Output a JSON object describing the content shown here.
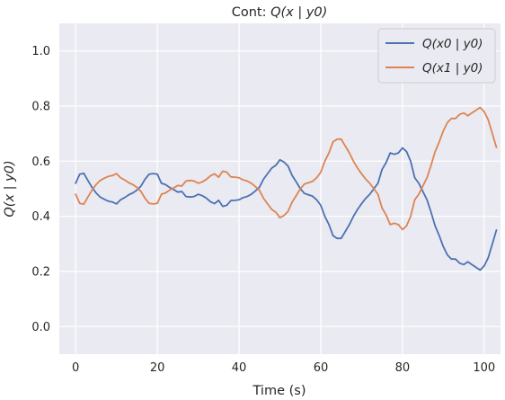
{
  "chart_data": {
    "type": "line",
    "title_prefix": "Cont: ",
    "title_math": "Q(x | y0)",
    "xlabel": "Time (s)",
    "ylabel": "Q(x | y0)",
    "xlim": [
      -4,
      104
    ],
    "ylim": [
      -0.1,
      1.1
    ],
    "xticks": [
      0,
      20,
      40,
      60,
      80,
      100
    ],
    "yticks": [
      0.0,
      0.2,
      0.4,
      0.6,
      0.8,
      1.0
    ],
    "xtick_labels": [
      "0",
      "20",
      "40",
      "60",
      "80",
      "100"
    ],
    "ytick_labels": [
      "0.0",
      "0.2",
      "0.4",
      "0.6",
      "0.8",
      "1.0"
    ],
    "grid": true,
    "legend_position": "top-right",
    "colors": {
      "background": "#eaeaf2",
      "grid": "#ffffff",
      "text": "#262626"
    },
    "series": [
      {
        "name": "Q(x0 | y0)",
        "color": "#4c72b0",
        "points": [
          [
            0,
            0.52
          ],
          [
            1,
            0.553
          ],
          [
            2,
            0.556
          ],
          [
            3,
            0.53
          ],
          [
            4,
            0.505
          ],
          [
            5,
            0.485
          ],
          [
            6,
            0.47
          ],
          [
            7,
            0.462
          ],
          [
            8,
            0.455
          ],
          [
            9,
            0.452
          ],
          [
            10,
            0.445
          ],
          [
            11,
            0.46
          ],
          [
            12,
            0.468
          ],
          [
            13,
            0.478
          ],
          [
            14,
            0.485
          ],
          [
            15,
            0.495
          ],
          [
            16,
            0.51
          ],
          [
            17,
            0.535
          ],
          [
            18,
            0.553
          ],
          [
            19,
            0.555
          ],
          [
            20,
            0.553
          ],
          [
            21,
            0.52
          ],
          [
            22,
            0.515
          ],
          [
            23,
            0.505
          ],
          [
            24,
            0.497
          ],
          [
            25,
            0.488
          ],
          [
            26,
            0.49
          ],
          [
            27,
            0.472
          ],
          [
            28,
            0.47
          ],
          [
            29,
            0.472
          ],
          [
            30,
            0.48
          ],
          [
            31,
            0.475
          ],
          [
            32,
            0.466
          ],
          [
            33,
            0.453
          ],
          [
            34,
            0.446
          ],
          [
            35,
            0.458
          ],
          [
            36,
            0.436
          ],
          [
            37,
            0.44
          ],
          [
            38,
            0.457
          ],
          [
            39,
            0.458
          ],
          [
            40,
            0.46
          ],
          [
            41,
            0.468
          ],
          [
            42,
            0.472
          ],
          [
            43,
            0.48
          ],
          [
            44,
            0.492
          ],
          [
            45,
            0.506
          ],
          [
            46,
            0.535
          ],
          [
            47,
            0.555
          ],
          [
            48,
            0.575
          ],
          [
            49,
            0.585
          ],
          [
            50,
            0.605
          ],
          [
            51,
            0.597
          ],
          [
            52,
            0.582
          ],
          [
            53,
            0.548
          ],
          [
            54,
            0.525
          ],
          [
            55,
            0.5
          ],
          [
            56,
            0.483
          ],
          [
            57,
            0.478
          ],
          [
            58,
            0.473
          ],
          [
            59,
            0.46
          ],
          [
            60,
            0.44
          ],
          [
            61,
            0.4
          ],
          [
            62,
            0.37
          ],
          [
            63,
            0.33
          ],
          [
            64,
            0.32
          ],
          [
            65,
            0.32
          ],
          [
            66,
            0.345
          ],
          [
            67,
            0.37
          ],
          [
            68,
            0.4
          ],
          [
            69,
            0.425
          ],
          [
            70,
            0.446
          ],
          [
            71,
            0.465
          ],
          [
            72,
            0.48
          ],
          [
            73,
            0.5
          ],
          [
            74,
            0.52
          ],
          [
            75,
            0.57
          ],
          [
            76,
            0.595
          ],
          [
            77,
            0.63
          ],
          [
            78,
            0.625
          ],
          [
            79,
            0.63
          ],
          [
            80,
            0.648
          ],
          [
            81,
            0.635
          ],
          [
            82,
            0.6
          ],
          [
            83,
            0.54
          ],
          [
            84,
            0.52
          ],
          [
            85,
            0.49
          ],
          [
            86,
            0.46
          ],
          [
            87,
            0.415
          ],
          [
            88,
            0.365
          ],
          [
            89,
            0.33
          ],
          [
            90,
            0.29
          ],
          [
            91,
            0.26
          ],
          [
            92,
            0.245
          ],
          [
            93,
            0.245
          ],
          [
            94,
            0.23
          ],
          [
            95,
            0.225
          ],
          [
            96,
            0.235
          ],
          [
            97,
            0.225
          ],
          [
            98,
            0.215
          ],
          [
            99,
            0.205
          ],
          [
            100,
            0.22
          ],
          [
            101,
            0.25
          ],
          [
            102,
            0.3
          ],
          [
            103,
            0.35
          ]
        ]
      },
      {
        "name": "Q(x1 | y0)",
        "color": "#dd8452",
        "points": [
          [
            0,
            0.48
          ],
          [
            1,
            0.447
          ],
          [
            2,
            0.444
          ],
          [
            3,
            0.47
          ],
          [
            4,
            0.495
          ],
          [
            5,
            0.515
          ],
          [
            6,
            0.53
          ],
          [
            7,
            0.538
          ],
          [
            8,
            0.545
          ],
          [
            9,
            0.548
          ],
          [
            10,
            0.555
          ],
          [
            11,
            0.54
          ],
          [
            12,
            0.532
          ],
          [
            13,
            0.522
          ],
          [
            14,
            0.515
          ],
          [
            15,
            0.505
          ],
          [
            16,
            0.49
          ],
          [
            17,
            0.465
          ],
          [
            18,
            0.447
          ],
          [
            19,
            0.445
          ],
          [
            20,
            0.447
          ],
          [
            21,
            0.48
          ],
          [
            22,
            0.485
          ],
          [
            23,
            0.495
          ],
          [
            24,
            0.503
          ],
          [
            25,
            0.512
          ],
          [
            26,
            0.51
          ],
          [
            27,
            0.528
          ],
          [
            28,
            0.53
          ],
          [
            29,
            0.528
          ],
          [
            30,
            0.52
          ],
          [
            31,
            0.525
          ],
          [
            32,
            0.534
          ],
          [
            33,
            0.547
          ],
          [
            34,
            0.554
          ],
          [
            35,
            0.542
          ],
          [
            36,
            0.564
          ],
          [
            37,
            0.56
          ],
          [
            38,
            0.543
          ],
          [
            39,
            0.542
          ],
          [
            40,
            0.54
          ],
          [
            41,
            0.532
          ],
          [
            42,
            0.528
          ],
          [
            43,
            0.52
          ],
          [
            44,
            0.508
          ],
          [
            45,
            0.494
          ],
          [
            46,
            0.465
          ],
          [
            47,
            0.445
          ],
          [
            48,
            0.425
          ],
          [
            49,
            0.415
          ],
          [
            50,
            0.395
          ],
          [
            51,
            0.403
          ],
          [
            52,
            0.418
          ],
          [
            53,
            0.452
          ],
          [
            54,
            0.475
          ],
          [
            55,
            0.5
          ],
          [
            56,
            0.517
          ],
          [
            57,
            0.522
          ],
          [
            58,
            0.527
          ],
          [
            59,
            0.54
          ],
          [
            60,
            0.56
          ],
          [
            61,
            0.6
          ],
          [
            62,
            0.63
          ],
          [
            63,
            0.67
          ],
          [
            64,
            0.68
          ],
          [
            65,
            0.68
          ],
          [
            66,
            0.655
          ],
          [
            67,
            0.63
          ],
          [
            68,
            0.6
          ],
          [
            69,
            0.575
          ],
          [
            70,
            0.554
          ],
          [
            71,
            0.535
          ],
          [
            72,
            0.52
          ],
          [
            73,
            0.5
          ],
          [
            74,
            0.48
          ],
          [
            75,
            0.43
          ],
          [
            76,
            0.405
          ],
          [
            77,
            0.37
          ],
          [
            78,
            0.375
          ],
          [
            79,
            0.37
          ],
          [
            80,
            0.352
          ],
          [
            81,
            0.365
          ],
          [
            82,
            0.4
          ],
          [
            83,
            0.46
          ],
          [
            84,
            0.48
          ],
          [
            85,
            0.51
          ],
          [
            86,
            0.54
          ],
          [
            87,
            0.585
          ],
          [
            88,
            0.635
          ],
          [
            89,
            0.67
          ],
          [
            90,
            0.71
          ],
          [
            91,
            0.74
          ],
          [
            92,
            0.755
          ],
          [
            93,
            0.755
          ],
          [
            94,
            0.77
          ],
          [
            95,
            0.775
          ],
          [
            96,
            0.765
          ],
          [
            97,
            0.775
          ],
          [
            98,
            0.785
          ],
          [
            99,
            0.795
          ],
          [
            100,
            0.78
          ],
          [
            101,
            0.75
          ],
          [
            102,
            0.7
          ],
          [
            103,
            0.65
          ]
        ]
      }
    ]
  }
}
